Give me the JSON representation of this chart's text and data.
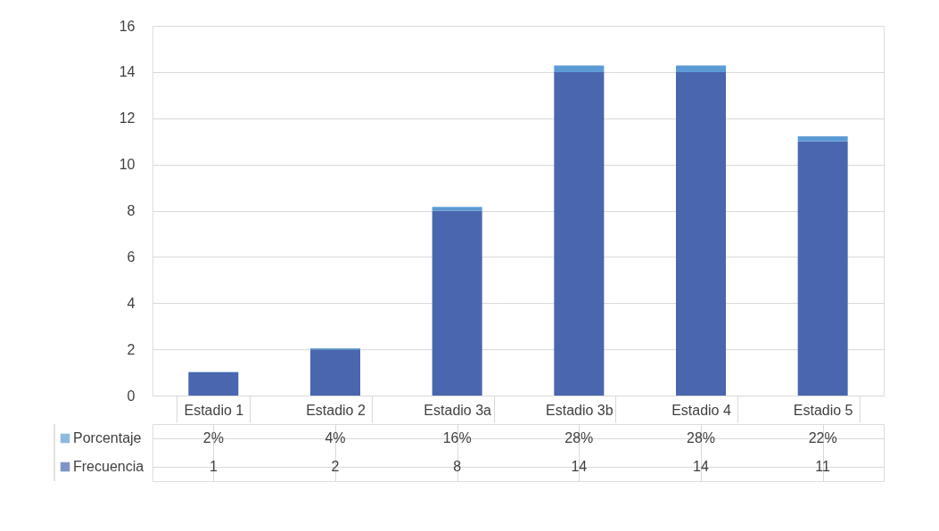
{
  "chart_data": {
    "type": "bar",
    "stacked": true,
    "categories": [
      "Estadio 1",
      "Estadio 2",
      "Estadio 3a",
      "Estadio 3b",
      "Estadio 4",
      "Estadio 5"
    ],
    "series": [
      {
        "name": "Frecuencia",
        "color": "#4966ae",
        "values": [
          1,
          2,
          8,
          14,
          14,
          11
        ],
        "value_labels": [
          "1",
          "2",
          "8",
          "14",
          "14",
          "11"
        ]
      },
      {
        "name": "Porcentaje",
        "color": "#5b9bd5",
        "values": [
          0.02,
          0.04,
          0.16,
          0.28,
          0.28,
          0.22
        ],
        "value_labels": [
          "2%",
          "4%",
          "16%",
          "28%",
          "28%",
          "22%"
        ]
      }
    ],
    "ylim": [
      0,
      16
    ],
    "yticks": [
      0,
      2,
      4,
      6,
      8,
      10,
      12,
      14,
      16
    ],
    "grid": "y",
    "legend": "bottom"
  }
}
